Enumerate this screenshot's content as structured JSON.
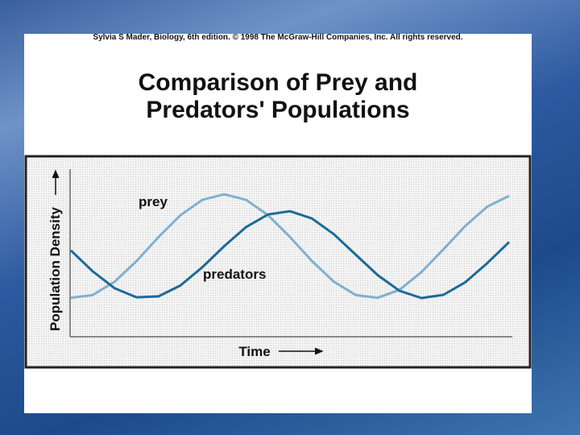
{
  "credit": "Sylvia S Mader, Biology, 6th edition. © 1998 The McGraw-Hill Companies, Inc. All rights reserved.",
  "chart_data": {
    "type": "line",
    "title": "Comparison of Prey and Predators' Populations",
    "xlabel": "Time",
    "ylabel": "Population Density",
    "x": [
      0,
      5,
      10,
      15,
      20,
      25,
      30,
      35,
      40,
      45,
      50,
      55,
      60,
      65,
      70,
      75,
      80,
      85,
      90,
      95,
      100
    ],
    "xlim": [
      0,
      100
    ],
    "ylim": [
      0,
      100
    ],
    "series": [
      {
        "name": "prey",
        "color": "#7fb0d3",
        "values": [
          23.2,
          24.9,
          32.9,
          45.2,
          59.5,
          72.5,
          81.7,
          85,
          81.7,
          72.5,
          59.5,
          45.2,
          32.9,
          24.9,
          23.2,
          28.0,
          38.6,
          52.1,
          66.1,
          77.6,
          84.1
        ]
      },
      {
        "name": "predators",
        "color": "#1c6a98",
        "values": [
          51.5,
          39.0,
          28.9,
          23.5,
          24.1,
          30.6,
          41.5,
          54.1,
          65.5,
          73.0,
          74.9,
          70.6,
          61.2,
          49,
          36.8,
          27.4,
          23.1,
          25.0,
          32.5,
          43.9,
          56.5
        ]
      }
    ]
  }
}
